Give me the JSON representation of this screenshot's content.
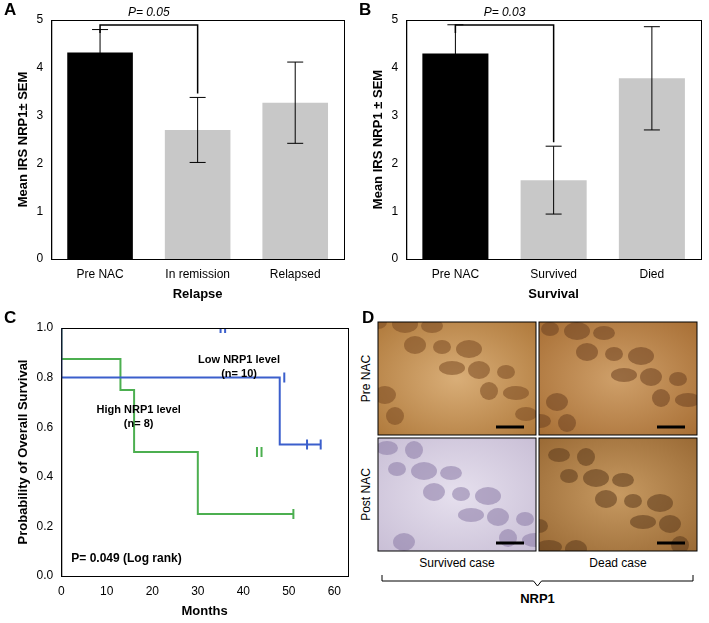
{
  "chart_data": [
    {
      "panel": "A",
      "type": "bar",
      "categories": [
        "Pre NAC",
        "In remission",
        "Relapsed"
      ],
      "values": [
        4.32,
        2.7,
        3.27
      ],
      "errors": [
        0.48,
        0.68,
        0.85
      ],
      "colors": [
        "#000000",
        "#c8c8c8",
        "#c8c8c8"
      ],
      "x_label": "Relapse",
      "y_label": "Mean IRS NRP1± SEM",
      "ylim": [
        0,
        5
      ],
      "yticks": [
        0,
        1,
        2,
        3,
        4,
        5
      ],
      "grid": false,
      "annotation": {
        "text": "P= 0.05",
        "between": [
          "Pre NAC",
          "In remission"
        ]
      }
    },
    {
      "panel": "B",
      "type": "bar",
      "categories": [
        "Pre NAC",
        "Survived",
        "Died"
      ],
      "values": [
        4.3,
        1.65,
        3.78
      ],
      "errors": [
        0.6,
        0.71,
        1.08
      ],
      "colors": [
        "#000000",
        "#c8c8c8",
        "#c8c8c8"
      ],
      "x_label": "Survival",
      "y_label": "Mean IRS NRP1 ± SEM",
      "ylim": [
        0,
        5
      ],
      "yticks": [
        0,
        1,
        2,
        3,
        4,
        5
      ],
      "grid": false,
      "annotation": {
        "text": "P= 0.03",
        "between": [
          "Pre NAC",
          "Survived"
        ]
      }
    },
    {
      "panel": "C",
      "type": "line",
      "x_label": "Months",
      "y_label": "Probability of Overall Survival",
      "xlim": [
        0,
        63
      ],
      "xticks": [
        0,
        10,
        20,
        30,
        40,
        50,
        60
      ],
      "ylim": [
        0,
        1
      ],
      "yticks": [
        {
          "value": 0,
          "label": "0.0"
        },
        0.2,
        0.4,
        0.6,
        0.8,
        {
          "value": 1,
          "label": "1.0"
        }
      ],
      "grid": false,
      "line_style": "stepped",
      "annotation": "P= 0.049 (Log rank)",
      "series": [
        {
          "name": "Low NRP1 level",
          "annotation": "(n= 10)",
          "color": "#3b5fcc",
          "marker": "line",
          "x": [
            0,
            48,
            51,
            57
          ],
          "values": [
            1,
            0.8,
            0.53,
            0.53
          ],
          "censored": {
            "x": [
              35,
              36,
              49,
              54,
              57
            ],
            "values": [
              1,
              1,
              0.8,
              0.53,
              0.53
            ]
          }
        },
        {
          "name": "High NRP1 level",
          "annotation": "(n= 8)",
          "color": "#4caf50",
          "marker": "line",
          "x": [
            0,
            13,
            16,
            30,
            50.5,
            51
          ],
          "values": [
            1,
            0.875,
            0.75,
            0.5,
            0.25,
            0.25
          ],
          "censored": {
            "x": [
              43,
              44,
              51
            ],
            "values": [
              0.5,
              0.5,
              0.25
            ]
          }
        }
      ]
    }
  ],
  "panel_d": {
    "panel": "D",
    "rows": [
      "Pre NAC",
      "Post NAC"
    ],
    "columns": [
      "Survived case",
      "Dead case"
    ],
    "caption": "NRP1"
  }
}
